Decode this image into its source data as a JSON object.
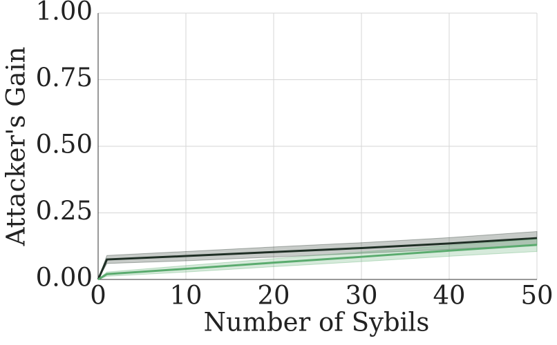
{
  "chart_data": {
    "type": "line",
    "xlabel": "Number of Sybils",
    "ylabel": "Attacker's Gain",
    "x": [
      0,
      1,
      10,
      20,
      30,
      40,
      50
    ],
    "series": [
      {
        "color": "#1f2f25",
        "values": [
          0,
          0.075,
          0.088,
          0.103,
          0.118,
          0.135,
          0.155
        ],
        "lower": [
          0,
          0.06,
          0.07,
          0.084,
          0.098,
          0.113,
          0.13
        ],
        "upper": [
          0,
          0.09,
          0.105,
          0.122,
          0.138,
          0.157,
          0.18
        ]
      },
      {
        "color": "#5aab6e",
        "values": [
          0,
          0.02,
          0.04,
          0.063,
          0.085,
          0.108,
          0.13
        ],
        "lower": [
          0,
          0.012,
          0.028,
          0.048,
          0.067,
          0.087,
          0.105
        ],
        "upper": [
          0,
          0.028,
          0.052,
          0.078,
          0.103,
          0.128,
          0.152
        ]
      }
    ],
    "xlim": [
      0,
      50
    ],
    "xticks": [
      0,
      10,
      20,
      30,
      40,
      50
    ],
    "ylim": [
      0,
      1
    ],
    "yticks": [
      {
        "value": 0,
        "label": "0.00"
      },
      {
        "value": 0.25,
        "label": "0.25"
      },
      {
        "value": 0.5,
        "label": "0.50"
      },
      {
        "value": 0.75,
        "label": "0.75"
      },
      {
        "value": 1,
        "label": "1.00"
      }
    ],
    "grid": true
  }
}
